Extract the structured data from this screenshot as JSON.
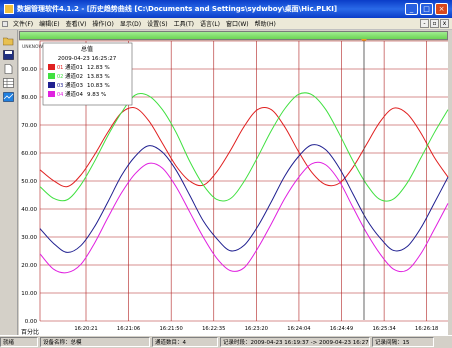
{
  "window": {
    "title": "数据管理软件4.1.2 - [历史趋势曲线 [C:\\Documents and Settings\\sydwboy\\桌面\\Hic.PLKI]",
    "minimize": "_",
    "maximize": "□",
    "close": "×"
  },
  "menu": [
    "文件(F)",
    "编辑(E)",
    "查看(V)",
    "操作(O)",
    "显示(D)",
    "设置(S)",
    "工具(T)",
    "语言(L)",
    "窗口(W)",
    "帮助(H)"
  ],
  "chart_header": {
    "unit_label": "UNKNOWN",
    "unit_footer": "百分比"
  },
  "legend": {
    "title": "总值",
    "timestamp": "2009-04-23 16:25:27",
    "items": [
      {
        "num": "01",
        "name": "通道01",
        "value": "12.83 %",
        "color": "#e02020"
      },
      {
        "num": "02",
        "name": "通道02",
        "value": "13.83 %",
        "color": "#40e040"
      },
      {
        "num": "03",
        "name": "通道03",
        "value": "10.83 %",
        "color": "#202090"
      },
      {
        "num": "04",
        "name": "通道04",
        "value": "9.83 %",
        "color": "#e020e0"
      }
    ]
  },
  "status": {
    "ready": "就绪",
    "device": "设备名称：总模",
    "channels": "通道数目：4",
    "time_range": "记录时段：2009-04-23 16:19:37 -> 2009-04-23 16:27:03",
    "interval": "记录间隔：15"
  },
  "chart_data": {
    "type": "line",
    "ylim": [
      0,
      100
    ],
    "yticks": [
      "0.00",
      "10.00",
      "20.00",
      "30.00",
      "40.00",
      "50.00",
      "60.00",
      "70.00",
      "80.00",
      "90.00"
    ],
    "xticks": [
      "16:20:21",
      "16:21:06",
      "16:21:50",
      "16:22:35",
      "16:23:20",
      "16:24:04",
      "16:24:49",
      "16:25:34",
      "16:26:18"
    ],
    "grid": true,
    "legend_position": "top-left",
    "series": [
      {
        "name": "通道01",
        "color": "#e02020",
        "x": [
          0,
          1,
          2,
          3,
          4,
          5,
          6,
          7,
          8,
          9,
          10,
          11,
          12,
          13,
          14,
          15,
          16,
          17,
          18,
          19,
          20,
          21,
          22,
          23,
          24,
          25,
          26,
          27,
          28,
          29,
          30
        ],
        "values": [
          54.0,
          50.1,
          48.0,
          52.1,
          59.3,
          67.5,
          74.4,
          76.1,
          71.5,
          63.5,
          55.4,
          50.0,
          48.5,
          53.3,
          60.9,
          69.4,
          75.5,
          75.5,
          69.3,
          60.6,
          53.0,
          48.7,
          49.2,
          54.8,
          63.0,
          71.1,
          76.0,
          74.0,
          67.2,
          58.4,
          51.4
        ]
      },
      {
        "name": "通道02",
        "color": "#40e040",
        "x": [
          0,
          1,
          2,
          3,
          4,
          5,
          6,
          7,
          8,
          9,
          10,
          11,
          12,
          13,
          14,
          15,
          16,
          17,
          18,
          19,
          20,
          21,
          22,
          23,
          24,
          25,
          26,
          27,
          28,
          29,
          30
        ],
        "values": [
          48.0,
          43.8,
          43.3,
          48.6,
          56.9,
          66.3,
          74.5,
          80.7,
          80.4,
          75.5,
          67.4,
          57.1,
          48.6,
          43.4,
          43.7,
          49.8,
          58.5,
          67.9,
          75.8,
          80.9,
          80.8,
          75.6,
          66.9,
          57.3,
          48.9,
          43.4,
          43.6,
          49.3,
          58.2,
          67.3,
          75.5
        ]
      },
      {
        "name": "通道03",
        "color": "#202090",
        "x": [
          0,
          1,
          2,
          3,
          4,
          5,
          6,
          7,
          8,
          9,
          10,
          11,
          12,
          13,
          14,
          15,
          16,
          17,
          18,
          19,
          20,
          21,
          22,
          23,
          24,
          25,
          26,
          27,
          28,
          29,
          30
        ],
        "values": [
          33.0,
          27.7,
          24.5,
          26.9,
          33.6,
          42.6,
          52.0,
          58.8,
          62.6,
          60.3,
          53.9,
          45.0,
          35.8,
          29.4,
          25.1,
          27.0,
          33.7,
          42.5,
          51.8,
          58.7,
          62.9,
          61.2,
          54.7,
          45.5,
          36.4,
          29.7,
          25.2,
          26.6,
          33.2,
          42.2,
          51.4
        ]
      },
      {
        "name": "通道04",
        "color": "#e020e0",
        "x": [
          0,
          1,
          2,
          3,
          4,
          5,
          6,
          7,
          8,
          9,
          10,
          11,
          12,
          13,
          14,
          15,
          16,
          17,
          18,
          19,
          20,
          21,
          22,
          23,
          24,
          25,
          26,
          27,
          28,
          29,
          30
        ],
        "values": [
          24.0,
          18.5,
          17.3,
          20.2,
          27.7,
          37.0,
          45.8,
          52.6,
          56.3,
          54.6,
          48.0,
          39.0,
          30.0,
          22.4,
          18.0,
          19.0,
          25.9,
          34.6,
          43.8,
          51.2,
          56.2,
          55.8,
          50.0,
          40.7,
          31.6,
          24.0,
          18.5,
          18.2,
          24.0,
          32.8,
          42.0
        ]
      }
    ]
  }
}
